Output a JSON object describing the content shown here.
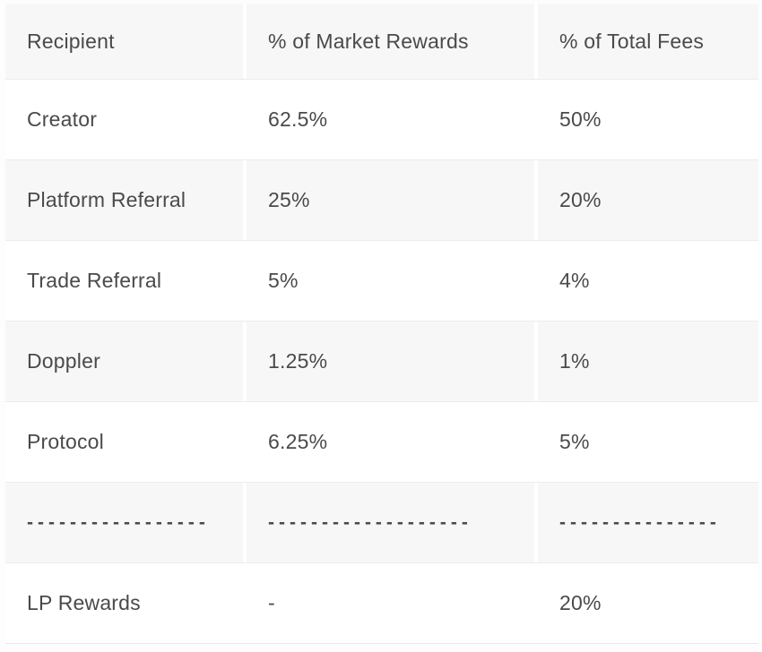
{
  "chart_data": {
    "type": "table",
    "columns": [
      "Recipient",
      "% of Market Rewards",
      "% of Total Fees"
    ],
    "rows": [
      [
        "Creator",
        "62.5%",
        "50%"
      ],
      [
        "Platform Referral",
        "25%",
        "20%"
      ],
      [
        "Trade Referral",
        "5%",
        "4%"
      ],
      [
        "Doppler",
        "1.25%",
        "1%"
      ],
      [
        "Protocol",
        "6.25%",
        "5%"
      ],
      [
        "-----------------",
        "-------------------",
        "---------------"
      ],
      [
        "LP Rewards",
        "-",
        "20%"
      ]
    ],
    "title": "",
    "layout_hints": {
      "striped": true,
      "stripe_rows": [
        "header",
        "Platform Referral",
        "Doppler",
        "divider-row"
      ],
      "divider_row_index": 5
    }
  },
  "colors": {
    "stripe_bg": "#f7f7f8",
    "row_bg": "#ffffff",
    "border": "#ececef",
    "text": "#4a4a4a"
  }
}
